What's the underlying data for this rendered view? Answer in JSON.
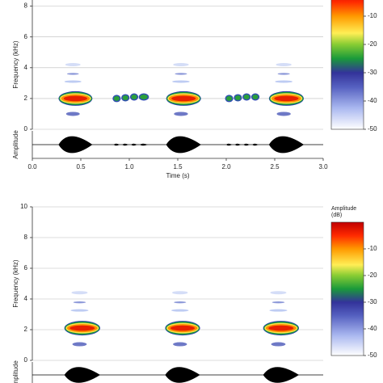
{
  "chart_data": [
    {
      "type": "spectrogram",
      "y_label": "Frequency (kHz)",
      "x_label": "Time (s)",
      "amplitude_label": "Amplitude",
      "xlim": [
        0,
        3
      ],
      "xticks": [
        {
          "value": 0,
          "label": "0.0"
        },
        {
          "value": 0.5,
          "label": "0.5"
        },
        {
          "value": 1,
          "label": "1.0"
        },
        {
          "value": 1.5,
          "label": "1.5"
        },
        {
          "value": 2,
          "label": "2.0"
        },
        {
          "value": 2.5,
          "label": "2.5"
        },
        {
          "value": 3,
          "label": "3.0"
        }
      ],
      "ylim": [
        0,
        8.4
      ],
      "yticks": [
        0,
        2,
        4,
        6,
        8
      ],
      "grid": true,
      "notes": {
        "start": [
          0.27,
          0.84,
          0.93,
          1.02,
          1.11,
          1.38,
          2.0,
          2.09,
          2.18,
          2.27,
          2.44
        ],
        "end": [
          0.62,
          0.9,
          0.99,
          1.08,
          1.19,
          1.74,
          2.06,
          2.15,
          2.24,
          2.33,
          2.8
        ],
        "freq": [
          2.0,
          2.0,
          2.05,
          2.1,
          2.1,
          2.0,
          2.0,
          2.05,
          2.1,
          2.1,
          2.0
        ]
      },
      "colorbar": {
        "lim": [
          -50,
          0
        ],
        "ticks": [
          -10,
          -20,
          -30,
          -40,
          -50
        ]
      }
    },
    {
      "type": "spectrogram",
      "y_label": "Frequency (kHz)",
      "amplitude_label": "Amplitude",
      "xlim": [
        0,
        3
      ],
      "ylim": [
        0,
        10
      ],
      "yticks": [
        0,
        2,
        4,
        6,
        8,
        10
      ],
      "grid": true,
      "notes": {
        "start": [
          0.33,
          1.37,
          2.38
        ],
        "end": [
          0.7,
          1.73,
          2.75
        ],
        "freq": [
          2.1,
          2.1,
          2.1
        ]
      },
      "colorbar": {
        "label": [
          "Amplitude",
          "(dB)"
        ],
        "lim": [
          -50,
          0
        ],
        "ticks": [
          -10,
          -20,
          -30,
          -40,
          -50
        ]
      }
    }
  ]
}
